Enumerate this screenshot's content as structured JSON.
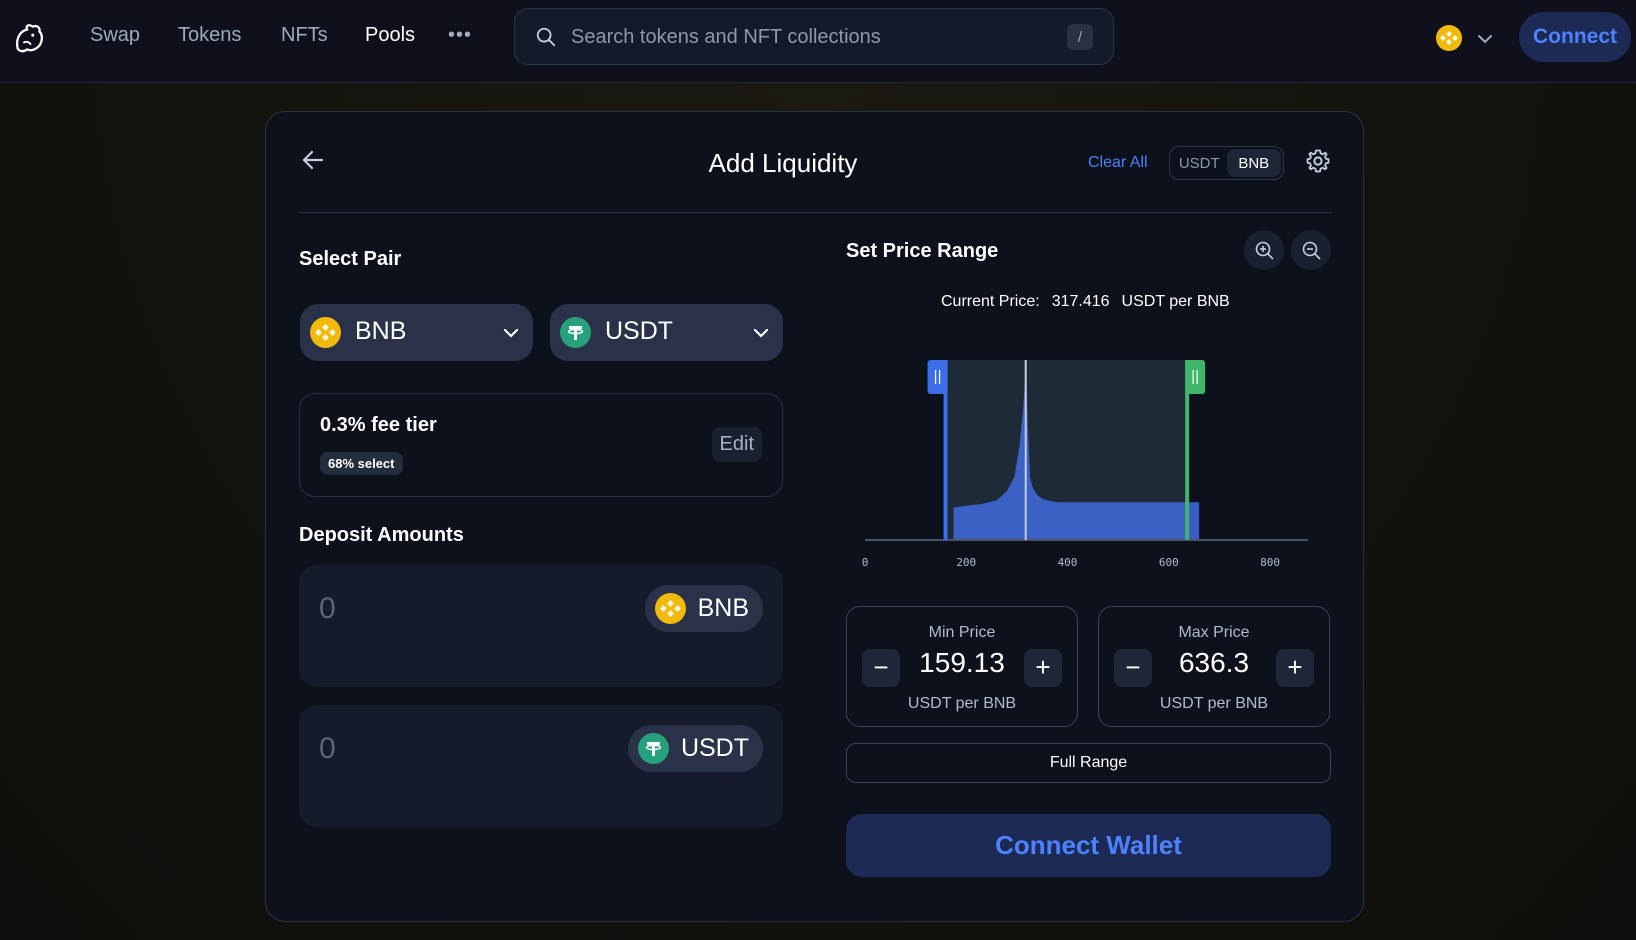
{
  "nav": {
    "links": [
      "Swap",
      "Tokens",
      "NFTs",
      "Pools"
    ],
    "active": "Pools",
    "more_label": "•••",
    "search_placeholder": "Search tokens and NFT collections",
    "search_shortcut": "/",
    "connect_label": "Connect"
  },
  "card": {
    "title": "Add Liquidity",
    "clear_all": "Clear All",
    "denom_options": [
      "USDT",
      "BNB"
    ],
    "denom_selected": "BNB"
  },
  "select_pair": {
    "label": "Select Pair",
    "token_a": "BNB",
    "token_b": "USDT"
  },
  "fee": {
    "title": "0.3% fee tier",
    "badge": "68% select",
    "edit_label": "Edit"
  },
  "deposit": {
    "label": "Deposit Amounts",
    "placeholder": "0",
    "token_a": "BNB",
    "token_b": "USDT"
  },
  "range": {
    "label": "Set Price Range",
    "current_price_label": "Current Price:",
    "current_price_value": "317.416",
    "current_price_unit": "USDT per BNB",
    "min_label": "Min Price",
    "min_value": "159.13",
    "max_label": "Max Price",
    "max_value": "636.3",
    "unit": "USDT per BNB",
    "full_range": "Full Range"
  },
  "connect_wallet": "Connect Wallet",
  "colors": {
    "accent": "#4c82fb",
    "min_handle": "#3b6ee8",
    "max_handle": "#40b66b",
    "bnb": "#f0b90b",
    "usdt": "#26a17b"
  },
  "chart_data": {
    "type": "area",
    "x_ticks": [
      0,
      200,
      400,
      600,
      800
    ],
    "xlim": [
      0,
      875
    ],
    "current_price": 317.416,
    "min_price": 159.13,
    "max_price": 636.3,
    "x": [
      175,
      200,
      230,
      260,
      280,
      295,
      305,
      312,
      318,
      322,
      326,
      330,
      340,
      350,
      360,
      380,
      420,
      500,
      600,
      660
    ],
    "y": [
      0.18,
      0.19,
      0.2,
      0.22,
      0.27,
      0.35,
      0.52,
      0.72,
      0.95,
      0.62,
      0.35,
      0.3,
      0.25,
      0.23,
      0.22,
      0.21,
      0.21,
      0.21,
      0.21,
      0.21
    ]
  }
}
